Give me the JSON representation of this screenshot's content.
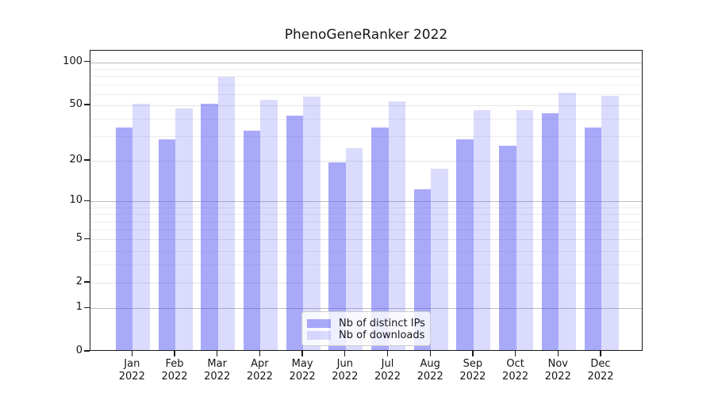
{
  "title": "PhenoGeneRanker 2022",
  "chart_data": {
    "type": "bar",
    "title": "PhenoGeneRanker 2022",
    "categories": [
      "Jan",
      "Feb",
      "Mar",
      "Apr",
      "May",
      "Jun",
      "Jul",
      "Aug",
      "Sep",
      "Oct",
      "Nov",
      "Dec"
    ],
    "year_label": "2022",
    "series": [
      {
        "name": "Nb of distinct IPs",
        "color": "rgba(90,90,245,0.52)",
        "color_hex": "#a9a9f6",
        "values": [
          34,
          28,
          50,
          32,
          41,
          19,
          34,
          12,
          28,
          25,
          43,
          34
        ]
      },
      {
        "name": "Nb of downloads",
        "color": "rgba(90,90,245,0.22)",
        "color_hex": "#dadafa",
        "values": [
          50,
          46,
          77,
          53,
          56,
          24,
          52,
          17,
          45,
          45,
          60,
          57
        ]
      }
    ],
    "xlabel": "",
    "ylabel": "",
    "yscale": "log10(value+1)",
    "yticks": [
      0,
      1,
      2,
      5,
      10,
      20,
      50,
      100
    ],
    "mid_gridlines": [
      2,
      5,
      20,
      50
    ],
    "minor_gridlines": [
      3,
      4,
      6,
      7,
      8,
      9,
      30,
      40,
      60,
      70,
      80,
      90
    ],
    "major_gridlines": [
      1,
      10,
      100
    ],
    "ylim": [
      0,
      117
    ],
    "grid": true,
    "legend_position": "lower center"
  },
  "colors": {
    "background": "#ffffff",
    "spine": "#1a1a1a",
    "grid_major": "#bdbdbd",
    "grid_minor": "#ededed",
    "text": "#15151a",
    "legend_border": "#cccccc"
  }
}
